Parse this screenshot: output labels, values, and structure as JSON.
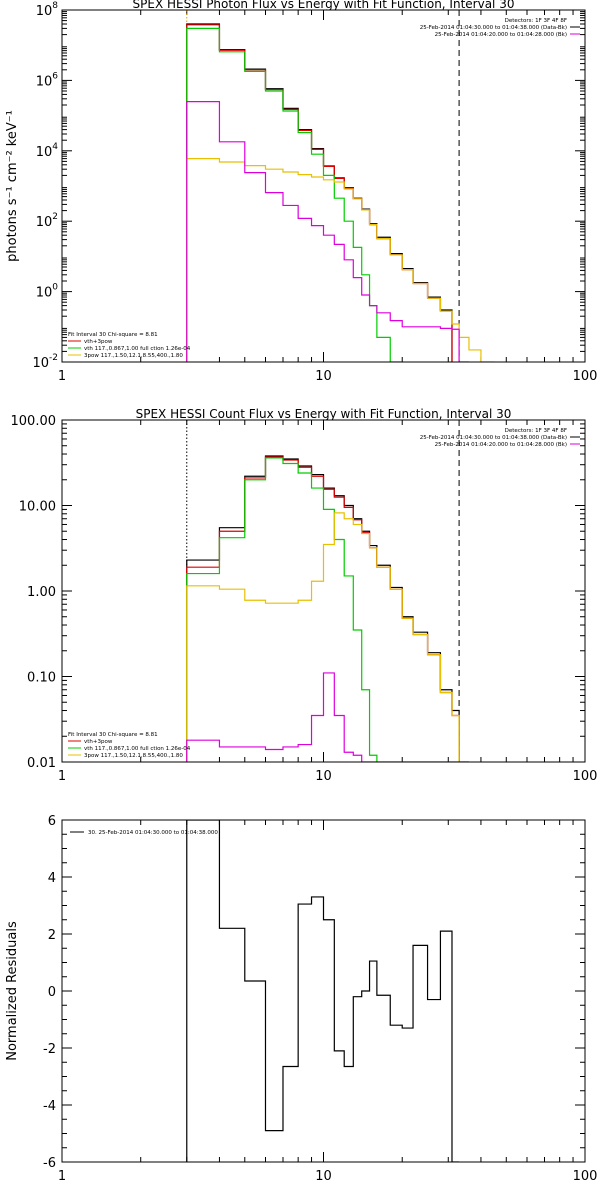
{
  "chart_data": [
    {
      "type": "line",
      "title": "SPEX HESSI Photon Flux vs Energy with Fit Function, Interval 30",
      "ylabel": "photons s⁻¹ cm⁻² keV⁻¹",
      "xscale": "log",
      "yscale": "log",
      "xlim": [
        1,
        100
      ],
      "ylim": [
        0.01,
        100000000
      ],
      "xticks": [
        {
          "v": 1,
          "label": "1"
        },
        {
          "v": 10,
          "label": "10"
        },
        {
          "v": 100,
          "label": "100"
        }
      ],
      "yticks": [
        {
          "v": 0.01,
          "label": "10",
          "sup": "-2"
        },
        {
          "v": 1,
          "label": "10",
          "sup": "0"
        },
        {
          "v": 100,
          "label": "10",
          "sup": "2"
        },
        {
          "v": 10000,
          "label": "10",
          "sup": "4"
        },
        {
          "v": 1000000,
          "label": "10",
          "sup": "6"
        },
        {
          "v": 100000000,
          "label": "10",
          "sup": "8"
        }
      ],
      "vlines": [
        {
          "x": 3,
          "style": "dotted",
          "color": "#e8a000"
        },
        {
          "x": 33,
          "style": "dashed",
          "color": "#000000"
        }
      ],
      "legend_top": [
        "Detectors: 1F 3F 4F 8F",
        "25-Feb-2014 01:04:30.000 to 01:04:38.000 (Data-Bk)",
        "25-Feb-2014 01:04:20.000 to 01:04:28.000 (Bk)"
      ],
      "legend_bottom": [
        "Fit Interval 30   Chi-square = 8.81",
        "vth+3pow",
        "vth 117.,0.867,1.00  full ction 1.26e-04",
        "3pow 117.,1.50,12.1,8.55,400.,1.80"
      ],
      "edges": [
        3,
        4,
        5,
        6,
        7,
        8,
        9,
        10,
        11,
        12,
        13,
        14,
        15,
        16,
        18,
        20,
        22,
        25,
        28,
        31,
        33,
        36,
        40,
        45
      ],
      "series": [
        {
          "name": "Data-Bk",
          "color": "#000000",
          "values": [
            40000000.0,
            7500000.0,
            2100000.0,
            580000.0,
            160000.0,
            40000.0,
            11500.0,
            3700.0,
            1700.0,
            900.0,
            450.0,
            220.0,
            85,
            35,
            12,
            4.5,
            1.8,
            0.7,
            0.3,
            null,
            null,
            null,
            null
          ]
        },
        {
          "name": "vth+3pow",
          "color": "#e00000",
          "values": [
            38000000.0,
            7200000.0,
            2000000.0,
            550000.0,
            150000.0,
            38000.0,
            11000.0,
            3600.0,
            1650.0,
            880.0,
            430.0,
            210.0,
            80,
            32,
            11,
            4.2,
            1.7,
            0.65,
            0.28,
            null,
            null,
            null,
            null
          ]
        },
        {
          "name": "vth",
          "color": "#00cc00",
          "values": [
            30000000.0,
            6500000.0,
            1800000.0,
            500000.0,
            135000.0,
            33000.0,
            8000.0,
            2000.0,
            450.0,
            100.0,
            18,
            3,
            0.4,
            0.05,
            0.01,
            null,
            null,
            null,
            null,
            null,
            null,
            null,
            null
          ]
        },
        {
          "name": "3pow",
          "color": "#e8c000",
          "values": [
            6000.0,
            4800.0,
            3800.0,
            3000.0,
            2500.0,
            2100.0,
            1800.0,
            1500.0,
            1300.0,
            820.0,
            430.0,
            210.0,
            80,
            32,
            11,
            4.2,
            1.7,
            0.65,
            0.28,
            0.12,
            0.05,
            0.022,
            0.01
          ]
        },
        {
          "name": "Bk",
          "color": "#dd00dd",
          "values": [
            250000.0,
            18000.0,
            2400.0,
            650.0,
            280.0,
            120.0,
            75,
            40,
            22,
            8,
            2.5,
            0.8,
            0.4,
            0.25,
            0.15,
            0.1,
            0.1,
            0.1,
            0.09,
            0.085,
            0.01,
            null,
            null
          ]
        }
      ]
    },
    {
      "type": "line",
      "title": "SPEX HESSI Count Flux vs Energy with Fit Function, Interval 30",
      "ylabel": "",
      "xscale": "log",
      "yscale": "log",
      "xlim": [
        1,
        100
      ],
      "ylim": [
        0.01,
        100
      ],
      "xticks": [
        {
          "v": 1,
          "label": "1"
        },
        {
          "v": 10,
          "label": "10"
        },
        {
          "v": 100,
          "label": "100"
        }
      ],
      "yticks": [
        {
          "v": 0.01,
          "label": "0.01"
        },
        {
          "v": 0.1,
          "label": "0.10"
        },
        {
          "v": 1,
          "label": "1.00"
        },
        {
          "v": 10,
          "label": "10.00"
        },
        {
          "v": 100,
          "label": "100.00"
        }
      ],
      "vlines": [
        {
          "x": 3,
          "style": "dotted",
          "color": "#000000"
        },
        {
          "x": 33,
          "style": "dashed",
          "color": "#000000"
        }
      ],
      "legend_top": [
        "Detectors: 1F 3F 4F 8F",
        "25-Feb-2014 01:04:30.000 to 01:04:38.000 (Data-Bk)",
        "25-Feb-2014 01:04:20.000 to 01:04:28.000 (Bk)"
      ],
      "legend_bottom": [
        "Fit Interval 30   Chi-square = 8.81",
        "vth+3pow",
        "vth 117.,0.867,1.00  full ction 1.26e-04",
        "3pow 117.,1.50,12.1,8.55,400.,1.80"
      ],
      "edges": [
        3,
        4,
        5,
        6,
        7,
        8,
        9,
        10,
        11,
        12,
        13,
        14,
        15,
        16,
        18,
        20,
        22,
        25,
        28,
        31,
        33,
        36,
        40,
        45
      ],
      "series": [
        {
          "name": "Data-Bk",
          "color": "#000000",
          "values": [
            2.3,
            5.5,
            22,
            38,
            35,
            29,
            23,
            16,
            13,
            10,
            7,
            5,
            3.4,
            2,
            1.1,
            0.5,
            0.33,
            0.19,
            0.07,
            0.04,
            null,
            null,
            null
          ]
        },
        {
          "name": "vth+3pow",
          "color": "#e00000",
          "values": [
            1.9,
            5.0,
            21,
            37,
            34,
            28,
            22,
            15.5,
            12.5,
            9.5,
            6.8,
            4.8,
            3.2,
            1.9,
            1.05,
            0.48,
            0.31,
            0.18,
            0.065,
            0.035,
            null,
            null,
            null
          ]
        },
        {
          "name": "vth",
          "color": "#00cc00",
          "values": [
            1.6,
            4.2,
            20,
            36,
            31,
            24,
            16,
            9,
            4,
            1.5,
            0.35,
            0.07,
            0.012,
            null,
            null,
            null,
            null,
            null,
            null,
            null,
            null,
            null,
            null
          ]
        },
        {
          "name": "3pow",
          "color": "#e8c000",
          "values": [
            1.15,
            1.05,
            0.78,
            0.72,
            0.72,
            0.78,
            1.3,
            3.5,
            8.2,
            7,
            6,
            4.7,
            3.2,
            1.9,
            1.05,
            0.48,
            0.31,
            0.18,
            0.065,
            0.035,
            0.01,
            null,
            null
          ]
        },
        {
          "name": "Bk",
          "color": "#dd00dd",
          "values": [
            0.018,
            0.015,
            0.015,
            0.014,
            0.015,
            0.016,
            0.035,
            0.11,
            0.035,
            0.013,
            0.012,
            0.01,
            0.009,
            0.0085,
            0.009,
            0.009,
            0.009,
            0.0085,
            0.009,
            0.0095,
            0.009,
            null,
            null
          ]
        }
      ]
    },
    {
      "type": "line",
      "title": "",
      "ylabel": "Normalized Residuals",
      "xscale": "log",
      "yscale": "linear",
      "xlim": [
        1,
        100
      ],
      "ylim": [
        -6,
        6
      ],
      "xticks": [
        {
          "v": 1,
          "label": "1"
        },
        {
          "v": 10,
          "label": "10"
        },
        {
          "v": 100,
          "label": "100"
        }
      ],
      "yticks": [
        {
          "v": -6,
          "label": "-6"
        },
        {
          "v": -4,
          "label": "-4"
        },
        {
          "v": -2,
          "label": "-2"
        },
        {
          "v": 0,
          "label": "0"
        },
        {
          "v": 2,
          "label": "2"
        },
        {
          "v": 4,
          "label": "4"
        },
        {
          "v": 6,
          "label": "6"
        }
      ],
      "legend_top": [
        "30. 25-Feb-2014 01:04:30.000 to 01:04:38.000"
      ],
      "edges": [
        3,
        4,
        5,
        6,
        7,
        8,
        9,
        10,
        11,
        12,
        13,
        14,
        15,
        16,
        18,
        20,
        22,
        25,
        28,
        31,
        33
      ],
      "series": [
        {
          "name": "30. 25-Feb-2014 01:04:30.000 to 01:04:38.000",
          "color": "#000000",
          "values": [
            6,
            2.2,
            0.35,
            -4.9,
            -2.65,
            3.05,
            3.3,
            2.5,
            -2.1,
            -2.65,
            -0.2,
            0.0,
            1.05,
            -0.15,
            -1.2,
            -1.3,
            1.6,
            -0.3,
            2.1,
            -6
          ]
        }
      ]
    }
  ]
}
